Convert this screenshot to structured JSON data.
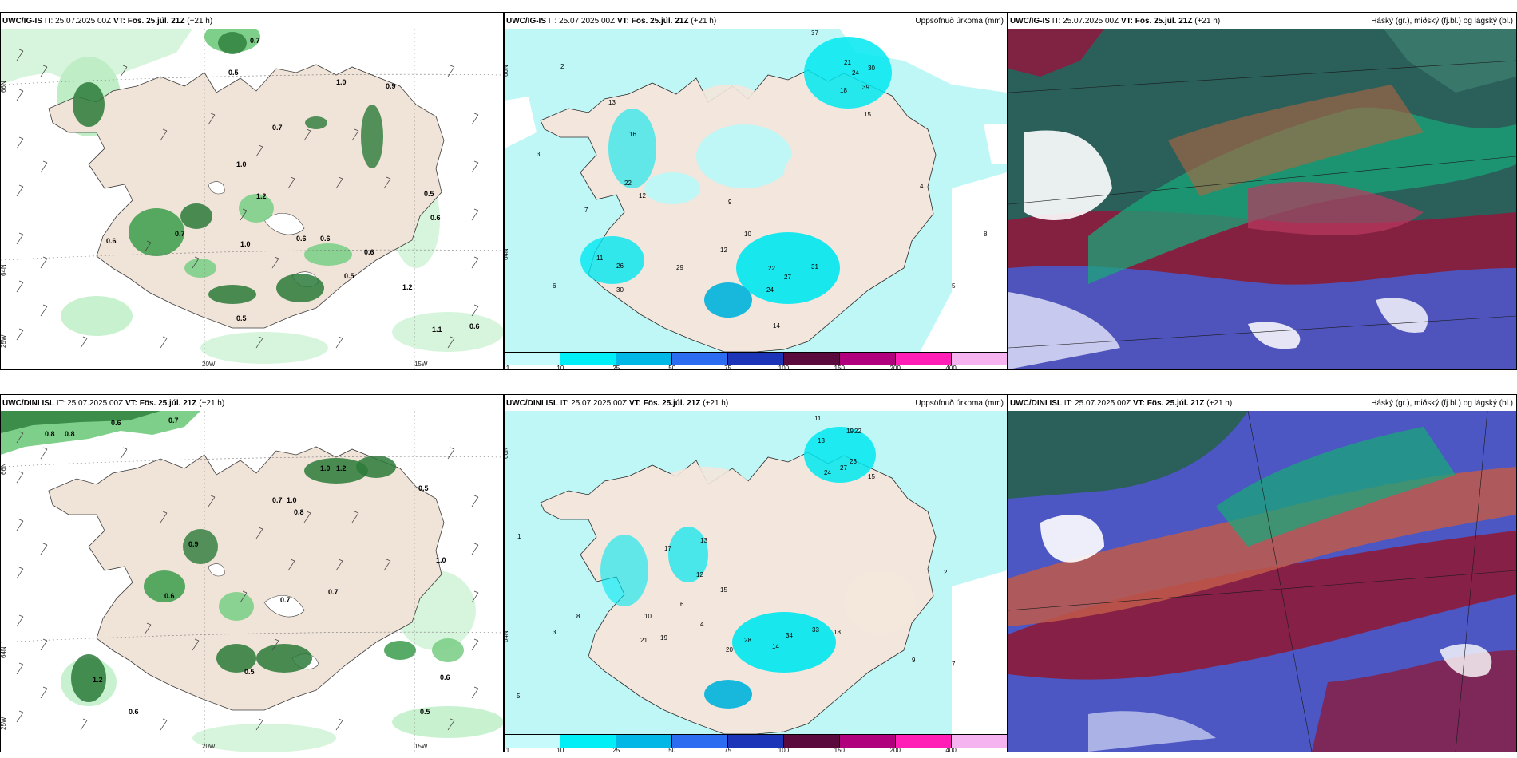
{
  "colors": {
    "land": "#f0e3d8",
    "coast": "#3c3c3c",
    "green_light": "#c8f2cf",
    "green_mid": "#7ecf8a",
    "green_dark": "#2c7a3a",
    "cyan_light": "#bff7f7",
    "cyan_mid": "#00e7f0",
    "cyan_dark": "#00b2dd",
    "cloud_high": "#2a5f5a",
    "cloud_mid": "#8a1d3f",
    "cloud_low": "#4c57c4"
  },
  "panels": {
    "p1": {
      "model": "UWC/IG-IS",
      "it_label": "IT:",
      "it_value": "25.07.2025 00Z",
      "vt_label": "VT:",
      "vt_value": "Fös. 25.júl. 21Z",
      "lead": "(+21 h)",
      "right_title": ""
    },
    "p2": {
      "model": "UWC/IG-IS",
      "it_label": "IT:",
      "it_value": "25.07.2025 00Z",
      "vt_label": "VT:",
      "vt_value": "Fös. 25.júl. 21Z",
      "lead": "(+21 h)",
      "right_title": "Uppsöfnuð úrkoma (mm)"
    },
    "p3": {
      "model": "UWC/IG-IS",
      "it_label": "IT:",
      "it_value": "25.07.2025 00Z",
      "vt_label": "VT:",
      "vt_value": "Fös. 25.júl. 21Z",
      "lead": "(+21 h)",
      "right_title": "Háský (gr.), miðský (fj.bl.) og lágský (bl.)"
    },
    "p4": {
      "model": "UWC/DINI ISL",
      "it_label": "IT:",
      "it_value": "25.07.2025 00Z",
      "vt_label": "VT:",
      "vt_value": "Fös. 25.júl. 21Z",
      "lead": "(+21 h)",
      "right_title": ""
    },
    "p5": {
      "model": "UWC/DINI ISL",
      "it_label": "IT:",
      "it_value": "25.07.2025 00Z",
      "vt_label": "VT:",
      "vt_value": "Fös. 25.júl. 21Z",
      "lead": "(+21 h)",
      "right_title": "Uppsöfnuð úrkoma (mm)"
    },
    "p6": {
      "model": "UWC/DINI ISL",
      "it_label": "IT:",
      "it_value": "25.07.2025 00Z",
      "vt_label": "VT:",
      "vt_value": "Fös. 25.júl. 21Z",
      "lead": "(+21 h)",
      "right_title": "Háský (gr.), miðský (fj.bl.) og lágský (bl.)"
    }
  },
  "axes": {
    "lat_66": "66N",
    "lat_64": "64N",
    "lon_25": "25W",
    "lon_20": "20W",
    "lon_15": "15W"
  },
  "legend": {
    "colors": [
      "#c7fbfb",
      "#00eef5",
      "#00b7e6",
      "#2b6cf0",
      "#1c34b8",
      "#5a0a3c",
      "#b0007d",
      "#ff1fb6",
      "#f5b3f0"
    ],
    "ticks": [
      "1",
      "10",
      "25",
      "50",
      "75",
      "100",
      "150",
      "200",
      "400"
    ]
  },
  "values": {
    "p1": [
      "0.5",
      "0.7",
      "1.0",
      "0.9",
      "0.7",
      "0.5",
      "0.6",
      "0.6",
      "0.6",
      "1.0",
      "1.2",
      "1.0",
      "0.7",
      "0.5",
      "0.6",
      "1.2",
      "0.6",
      "0.5",
      "1.1",
      "0.6"
    ],
    "p4": [
      "0.8",
      "0.8",
      "0.6",
      "0.7",
      "1.0",
      "1.2",
      "0.5",
      "0.8",
      "0.7",
      "1.0",
      "0.9",
      "1.0",
      "0.7",
      "0.6",
      "0.5",
      "1.2",
      "0.6",
      "0.5",
      "0.6",
      "0.7"
    ],
    "p2": [
      "37",
      "21",
      "24",
      "30",
      "39",
      "18",
      "15",
      "13",
      "16",
      "22",
      "12",
      "29",
      "26",
      "30",
      "24",
      "22",
      "27",
      "31",
      "14",
      "12",
      "8",
      "5",
      "3",
      "7",
      "9",
      "10",
      "11",
      "6",
      "4",
      "2"
    ],
    "p5": [
      "11",
      "13",
      "19",
      "22",
      "23",
      "27",
      "24",
      "15",
      "13",
      "17",
      "12",
      "15",
      "21",
      "19",
      "28",
      "20",
      "34",
      "33",
      "18",
      "14",
      "9",
      "7",
      "5",
      "3",
      "8",
      "10",
      "6",
      "4",
      "2",
      "1"
    ]
  }
}
